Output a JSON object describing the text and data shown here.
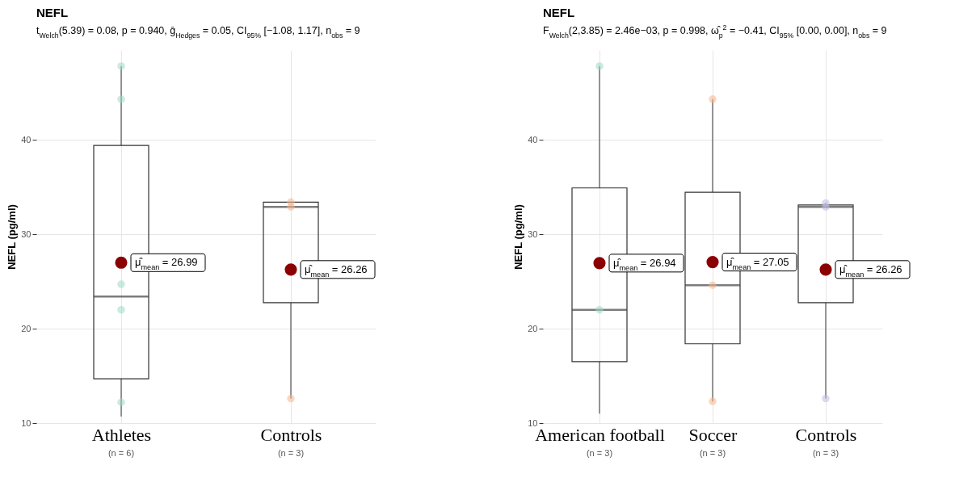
{
  "chart_data": [
    {
      "type": "box",
      "title": "NEFL",
      "subtitle": "t$_{Welch}$(5.39) = 0.08, p = 0.940, ĝ$_{Hedges}$ = 0.05, CI$_{95%}$ [−1.08, 1.17], n$_{obs}$ = 9",
      "ylabel": "NEFL (pg/ml)",
      "categories": [
        "Athletes",
        "Controls"
      ],
      "boxes": [
        {
          "low": 10.7,
          "q1": 14.7,
          "median": 23.4,
          "q3": 39.4,
          "high": 47.8
        },
        {
          "low": 12.6,
          "q1": 22.75,
          "median": 32.9,
          "q3": 33.4,
          "high": 33.4
        }
      ],
      "series": [
        {
          "type": "scatter",
          "x": [
            "Athletes",
            "Athletes",
            "Athletes",
            "Athletes",
            "Athletes",
            "Controls",
            "Controls",
            "Controls"
          ],
          "values": [
            47.8,
            44.3,
            24.7,
            22.0,
            12.2,
            33.4,
            32.9,
            12.6
          ],
          "colors": [
            "#9fd8c2",
            "#9fd8c2",
            "#9fd8c2",
            "#9fd8c2",
            "#9fd8c2",
            "#f5b48c",
            "#f5b48c",
            "#f5b48c"
          ]
        },
        {
          "type": "scatter",
          "x": [
            "Athletes",
            "Controls"
          ],
          "values": [
            26.99,
            26.26
          ],
          "color": "#8b0000",
          "value_labels": [
            "μ̂$_{mean}$ = 26.99",
            "μ̂$_{mean}$ = 26.26"
          ]
        }
      ],
      "annotations": [
        "(n = 6)",
        "(n = 3)"
      ],
      "ylim": [
        10,
        49.5
      ],
      "yticks": [
        10,
        20,
        30,
        40
      ],
      "grid": true
    },
    {
      "type": "box",
      "title": "NEFL",
      "subtitle": "F$_{Welch}$(2,3.85) = 2.46e−03, p = 0.998, ω̂$_{p}$$^{2}$ = −0.41, CI$_{95%}$ [0.00, 0.00], n$_{obs}$ = 9",
      "ylabel": "NEFL (pg/ml)",
      "categories": [
        "American football",
        "Soccer",
        "Controls"
      ],
      "boxes": [
        {
          "low": 11.0,
          "q1": 16.5,
          "median": 22.0,
          "q3": 34.9,
          "high": 47.8
        },
        {
          "low": 12.3,
          "q1": 18.4,
          "median": 24.6,
          "q3": 34.45,
          "high": 44.3
        },
        {
          "low": 12.6,
          "q1": 22.75,
          "median": 32.9,
          "q3": 33.1,
          "high": 33.3
        }
      ],
      "series": [
        {
          "type": "scatter",
          "x": [
            "American football",
            "American football",
            "Soccer",
            "Soccer",
            "Soccer",
            "Controls",
            "Controls",
            "Controls"
          ],
          "values": [
            47.8,
            22.0,
            44.3,
            24.6,
            12.3,
            33.3,
            32.9,
            12.6
          ],
          "colors": [
            "#9fd8c2",
            "#9fd8c2",
            "#f5b48c",
            "#f5b48c",
            "#f5b48c",
            "#bbbbe3",
            "#bbbbe3",
            "#bbbbe3"
          ]
        },
        {
          "type": "scatter",
          "x": [
            "American football",
            "Soccer",
            "Controls"
          ],
          "values": [
            26.94,
            27.05,
            26.26
          ],
          "color": "#8b0000",
          "value_labels": [
            "μ̂$_{mean}$ = 26.94",
            "μ̂$_{mean}$ = 27.05",
            "μ̂$_{mean}$ = 26.26"
          ]
        }
      ],
      "annotations": [
        "(n = 3)",
        "(n = 3)",
        "(n = 3)"
      ],
      "ylim": [
        10,
        49.5
      ],
      "yticks": [
        10,
        20,
        30,
        40
      ],
      "grid": true
    }
  ]
}
